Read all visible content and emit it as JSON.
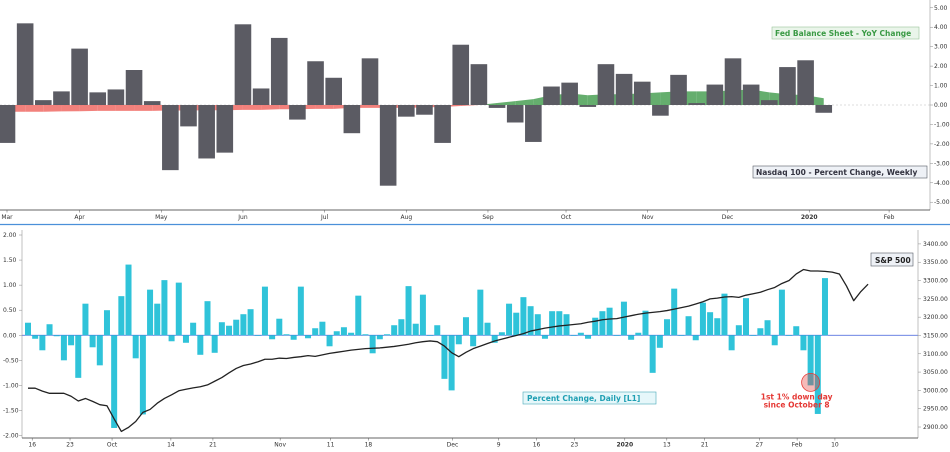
{
  "chart_data": [
    {
      "type": "bar",
      "series": [
        {
          "name": "Nasdaq 100 - Percent Change, Weekly",
          "color": "#5b5b63",
          "values": [
            -1.95,
            4.2,
            0.25,
            0.7,
            2.9,
            0.65,
            0.8,
            1.8,
            0.2,
            -3.35,
            -1.1,
            -2.75,
            -2.45,
            4.15,
            0.85,
            3.45,
            -0.75,
            2.25,
            1.4,
            -1.45,
            2.4,
            -4.15,
            -0.6,
            -0.5,
            -1.95,
            3.1,
            2.1,
            -0.15,
            -0.9,
            -1.9,
            0.95,
            1.15,
            -0.1,
            2.1,
            1.6,
            1.2,
            -0.55,
            1.55,
            0.1,
            1.05,
            2.4,
            1.05,
            0.25,
            1.95,
            2.3,
            -0.4
          ]
        },
        {
          "name": "Fed Balance Sheet - YoY Change",
          "type": "area",
          "negative_color": "#f06b65",
          "positive_color": "#3f9a4a",
          "values": [
            -0.35,
            -0.35,
            -0.35,
            -0.33,
            -0.32,
            -0.3,
            -0.3,
            -0.3,
            -0.3,
            -0.28,
            -0.28,
            -0.27,
            -0.27,
            -0.25,
            -0.25,
            -0.22,
            -0.22,
            -0.2,
            -0.2,
            -0.15,
            -0.15,
            -0.15,
            -0.15,
            -0.12,
            -0.1,
            -0.05,
            0.0,
            0.1,
            0.2,
            0.3,
            0.5,
            0.6,
            0.5,
            0.55,
            0.55,
            0.6,
            0.65,
            0.7,
            0.7,
            0.7,
            0.75,
            0.8,
            0.65,
            0.55,
            0.5,
            0.35
          ]
        }
      ],
      "ylim": [
        -5.4,
        5.4
      ],
      "yticks": [
        "5.00",
        "4.00",
        "3.00",
        "2.00",
        "1.00",
        "0.00",
        "-1.00",
        "-2.00",
        "-3.00",
        "-4.00",
        "-5.00"
      ],
      "ytick_values": [
        5,
        4,
        3,
        2,
        1,
        0,
        -1,
        -2,
        -3,
        -4,
        -5
      ],
      "xticks": [
        {
          "label": "Mar",
          "week": 0
        },
        {
          "label": "Apr",
          "week": 4
        },
        {
          "label": "May",
          "week": 8.5
        },
        {
          "label": "Jun",
          "week": 13
        },
        {
          "label": "Jul",
          "week": 17.5
        },
        {
          "label": "Aug",
          "week": 22
        },
        {
          "label": "Sep",
          "week": 26.5
        },
        {
          "label": "Oct",
          "week": 30.8
        },
        {
          "label": "Nov",
          "week": 35.3
        },
        {
          "label": "Dec",
          "week": 39.7
        },
        {
          "label": "2020",
          "week": 44.2
        },
        {
          "label": "Feb",
          "week": 48.6
        }
      ],
      "labels": {
        "fed": "Fed Balance Sheet - YoY Change",
        "nasdaq": "Nasdaq 100 - Percent Change, Weekly"
      }
    },
    {
      "type": "bar",
      "series": [
        {
          "name": "Percent Change, Daily [L1]",
          "color": "#2fc3d9",
          "values": [
            0.25,
            -0.07,
            -0.3,
            0.22,
            -0.02,
            -0.5,
            -0.2,
            -0.85,
            0.63,
            -0.24,
            -0.6,
            0.5,
            -1.85,
            0.78,
            1.41,
            -0.46,
            -1.58,
            0.91,
            0.63,
            1.1,
            -0.12,
            1.05,
            -0.15,
            0.25,
            -0.39,
            0.68,
            -0.35,
            0.26,
            0.19,
            0.31,
            0.42,
            0.52,
            0.0,
            0.97,
            -0.08,
            0.33,
            0.02,
            -0.09,
            0.97,
            -0.06,
            0.14,
            0.27,
            -0.22,
            0.08,
            0.16,
            0.05,
            0.79,
            0.02,
            -0.36,
            -0.08,
            0.02,
            0.2,
            0.32,
            0.98,
            0.23,
            0.81,
            0.0,
            0.2,
            -0.87,
            -1.1,
            -0.18,
            0.36,
            -0.22,
            0.91,
            0.25,
            -0.15,
            0.06,
            0.63,
            0.45,
            0.76,
            0.58,
            0.42,
            -0.07,
            0.48,
            0.48,
            0.42,
            0.0,
            0.05,
            -0.07,
            0.35,
            0.48,
            0.55,
            0.0,
            0.67,
            -0.09,
            0.05,
            0.49,
            -0.75,
            -0.25,
            0.32,
            0.93,
            0.0,
            0.38,
            -0.1,
            0.65,
            0.46,
            0.34,
            0.83,
            -0.3,
            0.2,
            0.74,
            0.0,
            0.14,
            0.3,
            -0.2,
            0.91,
            0.0,
            0.18,
            -0.3,
            -1.0,
            -1.57,
            1.14
          ]
        },
        {
          "name": "S&P 500",
          "type": "line",
          "color": "#222222",
          "values": [
            3006,
            3006,
            2998,
            2992,
            2992,
            2992,
            2984,
            2971,
            2978,
            2970,
            2961,
            2958,
            2922,
            2888,
            2899,
            2915,
            2940,
            2948,
            2965,
            2978,
            2988,
            2999,
            3003,
            3007,
            3010,
            3015,
            3025,
            3035,
            3048,
            3060,
            3068,
            3072,
            3078,
            3085,
            3085,
            3088,
            3087,
            3090,
            3092,
            3095,
            3093,
            3097,
            3101,
            3104,
            3107,
            3110,
            3112,
            3114,
            3115,
            3116,
            3118,
            3120,
            3123,
            3126,
            3130,
            3133,
            3135,
            3133,
            3121,
            3103,
            3092,
            3104,
            3114,
            3121,
            3128,
            3135,
            3140,
            3145,
            3150,
            3155,
            3162,
            3166,
            3170,
            3173,
            3176,
            3178,
            3180,
            3182,
            3186,
            3189,
            3193,
            3195,
            3196,
            3200,
            3204,
            3208,
            3211,
            3213,
            3215,
            3218,
            3222,
            3226,
            3230,
            3236,
            3242,
            3250,
            3252,
            3255,
            3256,
            3254,
            3260,
            3264,
            3268,
            3275,
            3281,
            3292,
            3300,
            3318,
            3330,
            3326,
            3326,
            3325,
            3323,
            3318,
            3285,
            3245,
            3270,
            3290
          ]
        }
      ],
      "ylim": [
        -2.05,
        2.1
      ],
      "yticks": [
        "2.00",
        "1.50",
        "1.00",
        "0.50",
        "0.00",
        "-0.50",
        "-1.00",
        "-1.50",
        "-2.00"
      ],
      "ytick_values": [
        2.0,
        1.5,
        1.0,
        0.5,
        0.0,
        -0.5,
        -1.0,
        -1.5,
        -2.0
      ],
      "y2lim": [
        2870,
        3438
      ],
      "y2ticks": [
        "3400.00",
        "3350.00",
        "3300.00",
        "3250.00",
        "3200.00",
        "3150.00",
        "3100.00",
        "3050.00",
        "3000.00",
        "2950.00",
        "2900.00"
      ],
      "y2tick_values": [
        3400,
        3350,
        3300,
        3250,
        3200,
        3150,
        3100,
        3050,
        3000,
        2950,
        2900
      ],
      "xticks": [
        {
          "label": "16",
          "day": 0.5
        },
        {
          "label": "23",
          "day": 5
        },
        {
          "label": "Oct",
          "day": 10
        },
        {
          "label": "14",
          "day": 17
        },
        {
          "label": "21",
          "day": 22
        },
        {
          "label": "Nov",
          "day": 30
        },
        {
          "label": "11",
          "day": 36
        },
        {
          "label": "18",
          "day": 40.5
        },
        {
          "label": "Dec",
          "day": 50.5
        },
        {
          "label": "9",
          "day": 56
        },
        {
          "label": "16",
          "day": 60.5
        },
        {
          "label": "23",
          "day": 65
        },
        {
          "label": "2020",
          "day": 71
        },
        {
          "label": "13",
          "day": 76
        },
        {
          "label": "21",
          "day": 80.5
        },
        {
          "label": "27",
          "day": 87
        },
        {
          "label": "Feb",
          "day": 91.5
        },
        {
          "label": "10",
          "day": 96
        }
      ],
      "labels": {
        "sp500": "S&P 500",
        "percent": "Percent Change, Daily [L1]"
      },
      "annotation": {
        "line1": "1st 1% down day",
        "line2": "since October 8",
        "color": "#e53935",
        "day": 109
      }
    }
  ]
}
